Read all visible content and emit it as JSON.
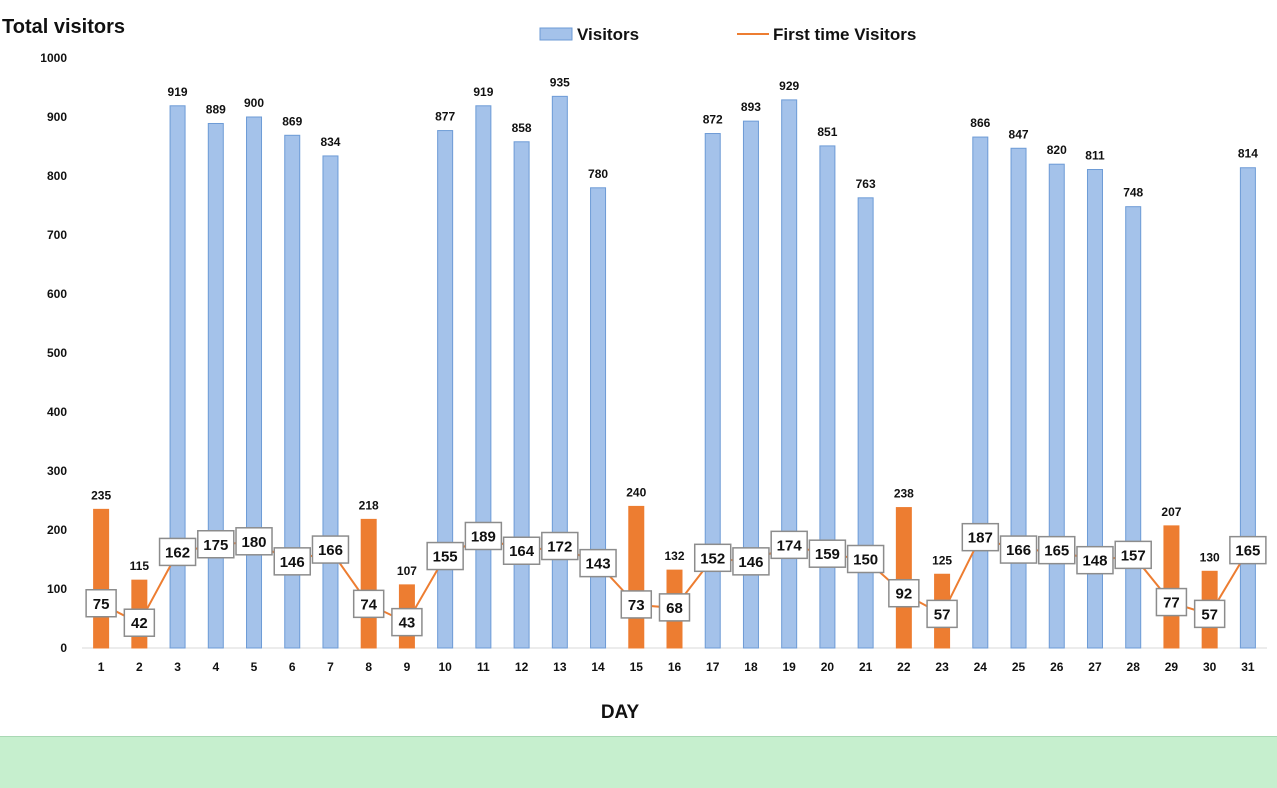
{
  "colors": {
    "visitors_fill": "#a4c2ea",
    "visitors_stroke": "#6d9bd6",
    "highlight_fill": "#ed7d31",
    "line": "#ed7d31",
    "label_box_border": "#8c8c8c",
    "band": "#c6efce"
  },
  "chart_data": {
    "type": "bar",
    "ylabel": "Total visitors",
    "xlabel": "DAY",
    "ylim": [
      0,
      1000
    ],
    "yticks": [
      "0",
      "100",
      "200",
      "300",
      "400",
      "500",
      "600",
      "700",
      "800",
      "900",
      "1000"
    ],
    "grid": false,
    "legend_position": "top-center",
    "categories": [
      "1",
      "2",
      "3",
      "4",
      "5",
      "6",
      "7",
      "8",
      "9",
      "10",
      "11",
      "12",
      "13",
      "14",
      "15",
      "16",
      "17",
      "18",
      "19",
      "20",
      "21",
      "22",
      "23",
      "24",
      "25",
      "26",
      "27",
      "28",
      "29",
      "30",
      "31"
    ],
    "series": [
      {
        "name": "Visitors",
        "type": "bar",
        "values": [
          235,
          115,
          919,
          889,
          900,
          869,
          834,
          218,
          107,
          877,
          919,
          858,
          935,
          780,
          240,
          132,
          872,
          893,
          929,
          851,
          763,
          238,
          125,
          866,
          847,
          820,
          811,
          748,
          207,
          130,
          814
        ],
        "highlighted_days": [
          "1",
          "2",
          "8",
          "9",
          "15",
          "16",
          "22",
          "23",
          "29",
          "30"
        ]
      },
      {
        "name": "First time Visitors",
        "type": "line",
        "values": [
          75,
          42,
          162,
          175,
          180,
          146,
          166,
          74,
          43,
          155,
          189,
          164,
          172,
          143,
          73,
          68,
          152,
          146,
          174,
          159,
          150,
          92,
          57,
          187,
          166,
          165,
          148,
          157,
          77,
          57,
          165
        ]
      }
    ]
  }
}
